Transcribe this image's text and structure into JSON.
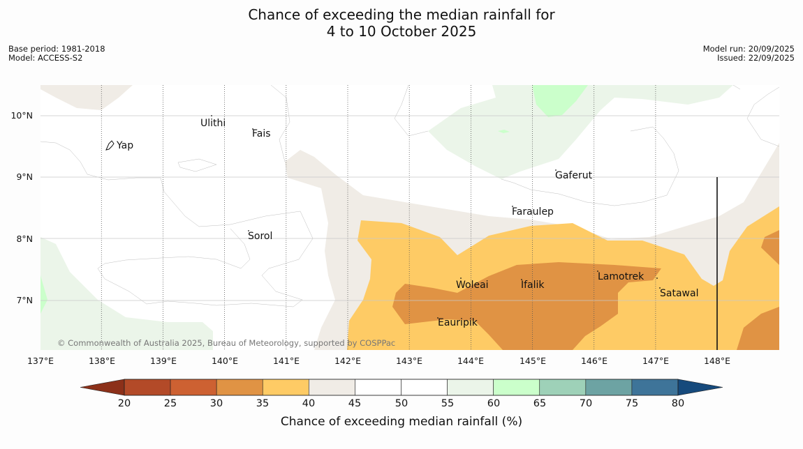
{
  "title": {
    "line1": "Chance of exceeding the median rainfall for",
    "line2": "4 to 10 October 2025"
  },
  "meta_left": {
    "base_period": "Base period: 1981-2018",
    "model": "Model: ACCESS-S2"
  },
  "meta_right": {
    "model_run": "Model run: 20/09/2025",
    "issued": "Issued: 22/09/2025"
  },
  "map": {
    "lon_labels": [
      "137°E",
      "138°E",
      "139°E",
      "140°E",
      "141°E",
      "142°E",
      "143°E",
      "144°E",
      "145°E",
      "146°E",
      "147°E",
      "148°E"
    ],
    "lat_labels": [
      "10°N",
      "9°N",
      "8°N",
      "7°N"
    ],
    "places": [
      {
        "name": "Ulithi"
      },
      {
        "name": "Fais"
      },
      {
        "name": "Yap"
      },
      {
        "name": "Gaferut"
      },
      {
        "name": "Faraulep"
      },
      {
        "name": "Sorol"
      },
      {
        "name": "Lamotrek"
      },
      {
        "name": "Woleai"
      },
      {
        "name": "Ifalik"
      },
      {
        "name": "Satawal"
      },
      {
        "name": "Eauripik"
      }
    ],
    "credit": "© Commonwealth of Australia 2025, Bureau of Meteorology, supported by COSPPac"
  },
  "colorbar": {
    "title": "Chance of exceeding median rainfall (%)",
    "ticks": [
      "20",
      "25",
      "30",
      "35",
      "40",
      "45",
      "50",
      "55",
      "60",
      "65",
      "70",
      "75",
      "80"
    ],
    "colors": [
      "#b34a28",
      "#cd6132",
      "#e09344",
      "#fecb65",
      "#f0ece6",
      "#ffffff",
      "#ffffff",
      "#ebf5e9",
      "#cbffcb",
      "#9ed1b8",
      "#6da3a3",
      "#3e7499"
    ],
    "extend_low": "#8c3019",
    "extend_high": "#164a7c"
  }
}
